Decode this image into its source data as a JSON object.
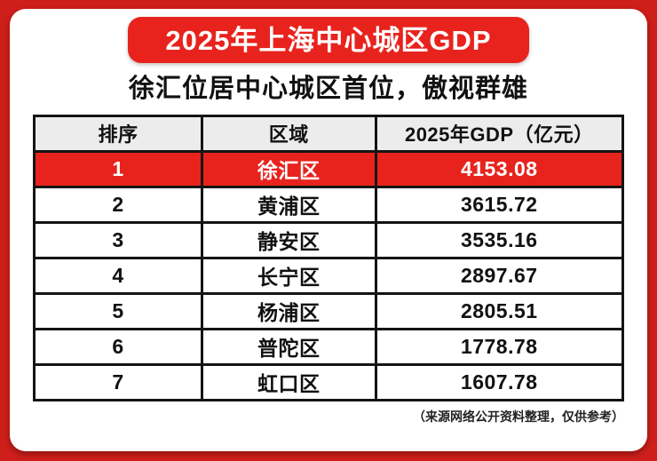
{
  "colors": {
    "bg_red": "#cf1f1b",
    "banner_red": "#e8231d",
    "highlight_red": "#e8231d",
    "header_gray": "#ececec",
    "card_white": "#ffffff"
  },
  "banner": {
    "title": "2025年上海中心城区GDP"
  },
  "subtitle": "徐汇位居中心城区首位，傲视群雄",
  "table": {
    "headers": [
      "排序",
      "区域",
      "2025年GDP（亿元）"
    ],
    "rows": [
      {
        "rank": "1",
        "district": "徐汇区",
        "gdp": "4153.08"
      },
      {
        "rank": "2",
        "district": "黄浦区",
        "gdp": "3615.72"
      },
      {
        "rank": "3",
        "district": "静安区",
        "gdp": "3535.16"
      },
      {
        "rank": "4",
        "district": "长宁区",
        "gdp": "2897.67"
      },
      {
        "rank": "5",
        "district": "杨浦区",
        "gdp": "2805.51"
      },
      {
        "rank": "6",
        "district": "普陀区",
        "gdp": "1778.78"
      },
      {
        "rank": "7",
        "district": "虹口区",
        "gdp": "1607.78"
      }
    ]
  },
  "footer_note": "（来源网络公开资料整理，仅供参考）",
  "chart_data": {
    "type": "table",
    "title": "2025年上海中心城区GDP",
    "subtitle": "徐汇位居中心城区首位，傲视群雄",
    "columns": [
      "排序",
      "区域",
      "2025年GDP（亿元）"
    ],
    "rows": [
      [
        1,
        "徐汇区",
        4153.08
      ],
      [
        2,
        "黄浦区",
        3615.72
      ],
      [
        3,
        "静安区",
        3535.16
      ],
      [
        4,
        "长宁区",
        2897.67
      ],
      [
        5,
        "杨浦区",
        2805.51
      ],
      [
        6,
        "普陀区",
        1778.78
      ],
      [
        7,
        "虹口区",
        1607.78
      ]
    ],
    "highlighted_row_index": 0,
    "units": "亿元",
    "source_note": "（来源网络公开资料整理，仅供参考）"
  }
}
